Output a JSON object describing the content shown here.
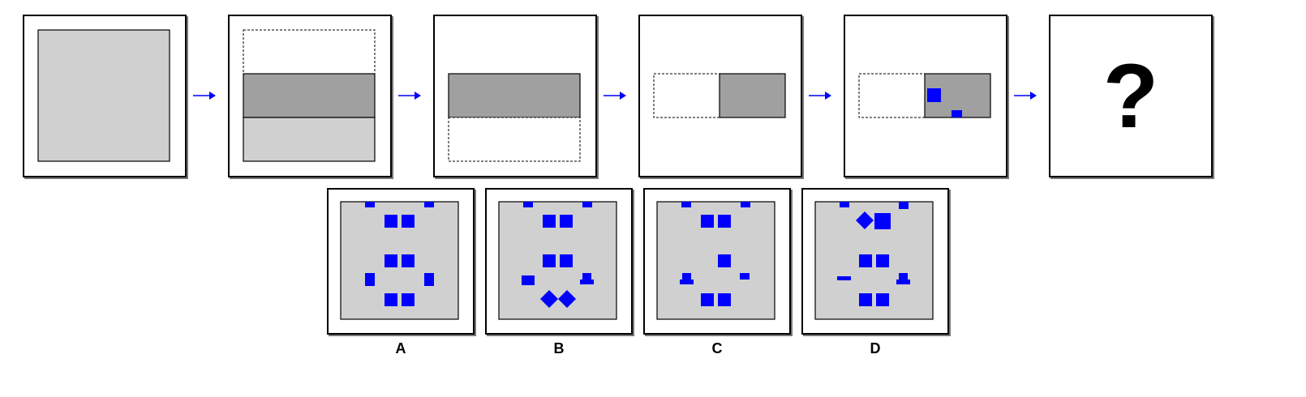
{
  "puzzle": {
    "sequence": [
      {
        "step": 1,
        "description_name": "full-square"
      },
      {
        "step": 2,
        "description_name": "folded-band"
      },
      {
        "step": 3,
        "description_name": "folded-upper-half"
      },
      {
        "step": 4,
        "description_name": "folded-right-half"
      },
      {
        "step": 5,
        "description_name": "punched-holes"
      },
      {
        "step": 6,
        "question": "?"
      }
    ],
    "options": [
      {
        "label": "A"
      },
      {
        "label": "B"
      },
      {
        "label": "C"
      },
      {
        "label": "D"
      }
    ]
  },
  "colors": {
    "paper_light": "#d0d0d0",
    "paper_dark": "#a0a0a0",
    "hole_blue": "#0000ff",
    "arrow_blue": "#0000ff",
    "border": "#000000"
  }
}
